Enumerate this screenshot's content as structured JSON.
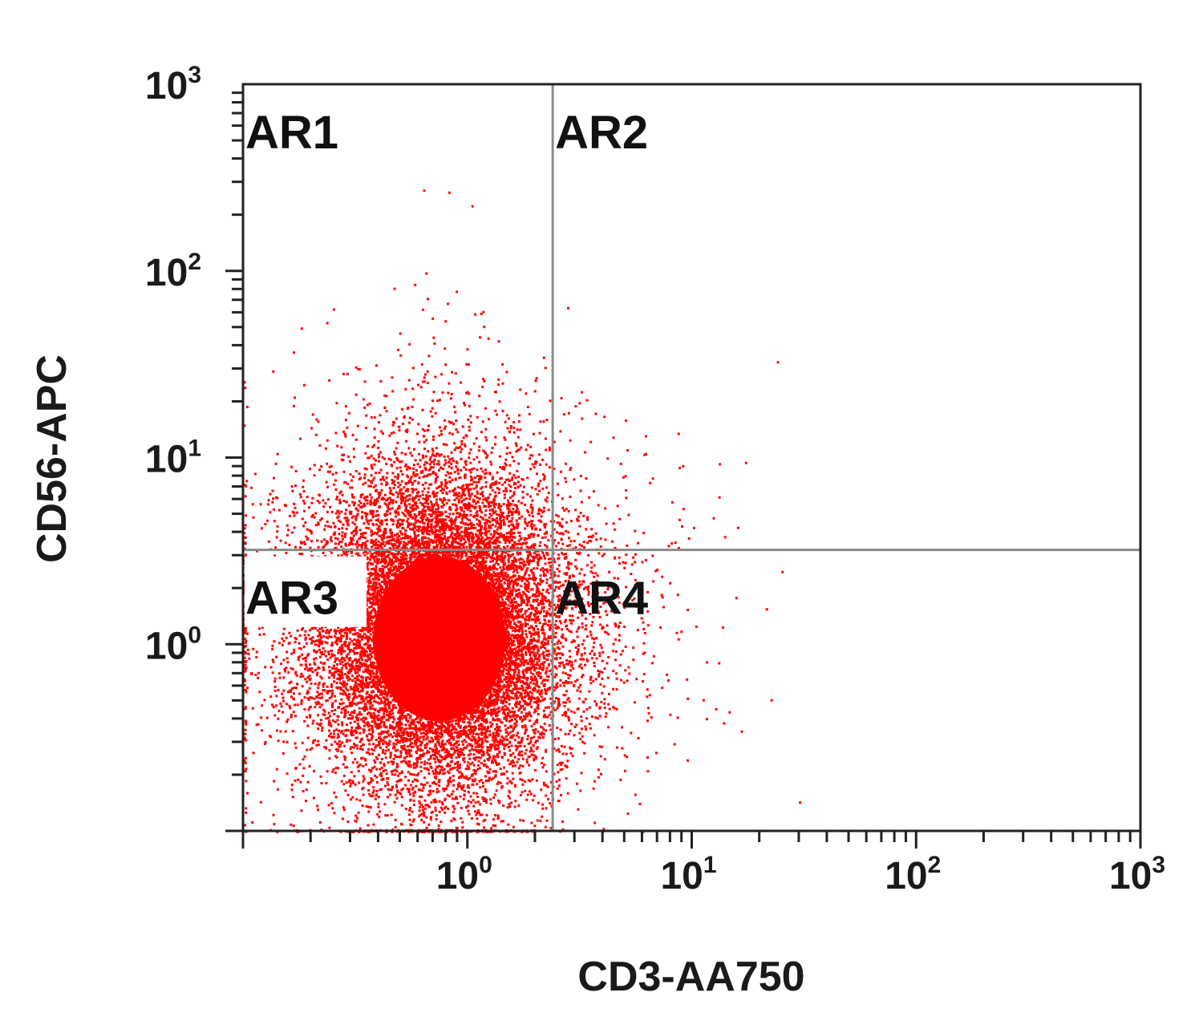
{
  "chart_data": {
    "type": "scatter",
    "title": "",
    "xlabel": "CD3-AA750",
    "ylabel": "CD56-APC",
    "x_scale": "log",
    "y_scale": "log",
    "xlim": [
      0.1,
      1000
    ],
    "ylim": [
      0.1,
      1000
    ],
    "x_ticks": [
      {
        "base": "10",
        "exp": "0",
        "value": 1
      },
      {
        "base": "10",
        "exp": "1",
        "value": 10
      },
      {
        "base": "10",
        "exp": "2",
        "value": 100
      },
      {
        "base": "10",
        "exp": "3",
        "value": 1000
      }
    ],
    "y_ticks": [
      {
        "base": "10",
        "exp": "0",
        "value": 1
      },
      {
        "base": "10",
        "exp": "1",
        "value": 10
      },
      {
        "base": "10",
        "exp": "2",
        "value": 100
      },
      {
        "base": "10",
        "exp": "3",
        "value": 1000
      }
    ],
    "gates": {
      "x": 2.4,
      "y": 3.2
    },
    "quadrants": [
      {
        "label": "AR1",
        "position": "top-left"
      },
      {
        "label": "AR2",
        "position": "top-right"
      },
      {
        "label": "AR3",
        "position": "bottom-left"
      },
      {
        "label": "AR4",
        "position": "bottom-right"
      }
    ],
    "population": {
      "color": "#ff0000",
      "center_x": 0.75,
      "center_y": 1.2,
      "spread_log_x": 0.28,
      "spread_log_y": 0.42
    },
    "grid": false,
    "legend": "none"
  }
}
